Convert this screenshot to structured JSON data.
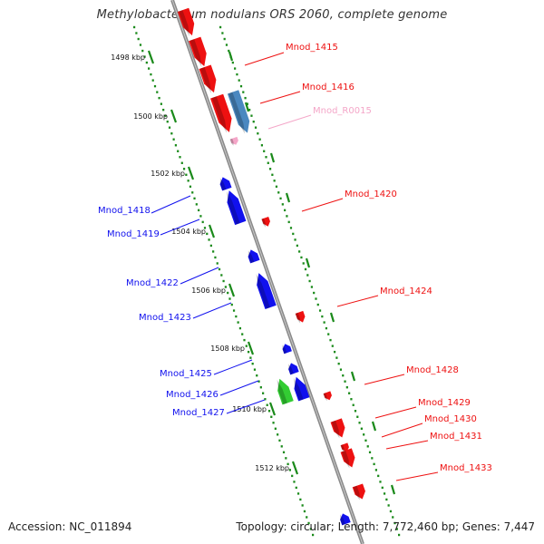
{
  "title": "Methylobacterium nodulans ORS 2060, complete genome",
  "footer": {
    "accession": "Accession: NC_011894",
    "summary": "Topology: circular; Length: 7,772,460 bp; Genes: 7,447"
  },
  "colors": {
    "backbone": "#8a8a8a",
    "ruler": "#1a8a1a",
    "forward_gene": "#ee1111",
    "reverse_gene": "#1111ee",
    "rRNA": "#4a88c0",
    "tRNA": "#f4a6c8",
    "other": "#33cc33"
  },
  "ruler": {
    "unit": "kbp",
    "ticks": [
      "1498 kbp",
      "1500 kbp",
      "1502 kbp",
      "1504 kbp",
      "1506 kbp",
      "1508 kbp",
      "1510 kbp",
      "1512 kbp"
    ]
  },
  "genes": [
    {
      "label": "Mnod_1415",
      "strand": "+",
      "kind": "gene"
    },
    {
      "label": "Mnod_1416",
      "strand": "+",
      "kind": "gene"
    },
    {
      "label": "Mnod_R0015",
      "strand": "+",
      "kind": "tRNA"
    },
    {
      "label": "Mnod_1418",
      "strand": "-",
      "kind": "gene"
    },
    {
      "label": "Mnod_1419",
      "strand": "-",
      "kind": "gene"
    },
    {
      "label": "Mnod_1420",
      "strand": "+",
      "kind": "gene"
    },
    {
      "label": "Mnod_1422",
      "strand": "-",
      "kind": "gene"
    },
    {
      "label": "Mnod_1423",
      "strand": "-",
      "kind": "gene"
    },
    {
      "label": "Mnod_1424",
      "strand": "+",
      "kind": "gene"
    },
    {
      "label": "Mnod_1425",
      "strand": "-",
      "kind": "gene"
    },
    {
      "label": "Mnod_1426",
      "strand": "-",
      "kind": "gene"
    },
    {
      "label": "Mnod_1427",
      "strand": "-",
      "kind": "gene"
    },
    {
      "label": "Mnod_1428",
      "strand": "+",
      "kind": "gene"
    },
    {
      "label": "Mnod_1429",
      "strand": "+",
      "kind": "gene"
    },
    {
      "label": "Mnod_1430",
      "strand": "+",
      "kind": "gene"
    },
    {
      "label": "Mnod_1431",
      "strand": "+",
      "kind": "gene"
    },
    {
      "label": "Mnod_1433",
      "strand": "+",
      "kind": "gene"
    }
  ]
}
